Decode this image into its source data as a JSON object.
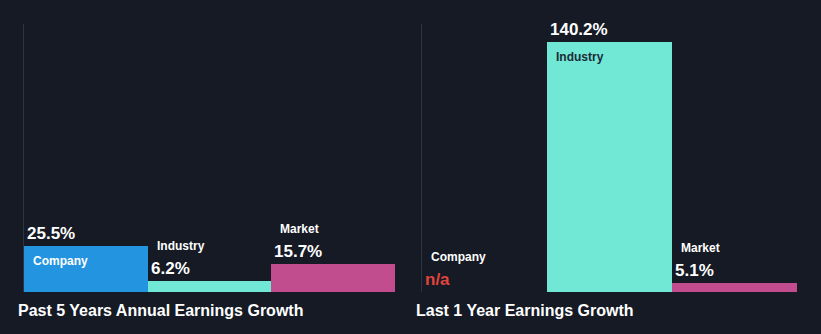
{
  "chart_data": [
    {
      "type": "bar",
      "title": "Past 5 Years Annual Earnings Growth",
      "categories": [
        "Company",
        "Industry",
        "Market"
      ],
      "values": [
        25.5,
        6.2,
        15.7
      ],
      "value_labels": [
        "25.5%",
        "6.2%",
        "15.7%"
      ],
      "colors": [
        "#2394df",
        "#71e7d6",
        "#c24d8e"
      ],
      "ylim": [
        0,
        150
      ],
      "data_labels": true,
      "tick_labels": false,
      "grid": false
    },
    {
      "type": "bar",
      "title": "Last 1 Year Earnings Growth",
      "categories": [
        "Company",
        "Industry",
        "Market"
      ],
      "values": [
        null,
        140.2,
        5.1
      ],
      "value_labels": [
        "n/a",
        "140.2%",
        "5.1%"
      ],
      "colors": [
        "#2394df",
        "#71e7d6",
        "#c24d8e"
      ],
      "ylim": [
        0,
        150
      ],
      "data_labels": true,
      "tick_labels": false,
      "grid": false
    }
  ]
}
